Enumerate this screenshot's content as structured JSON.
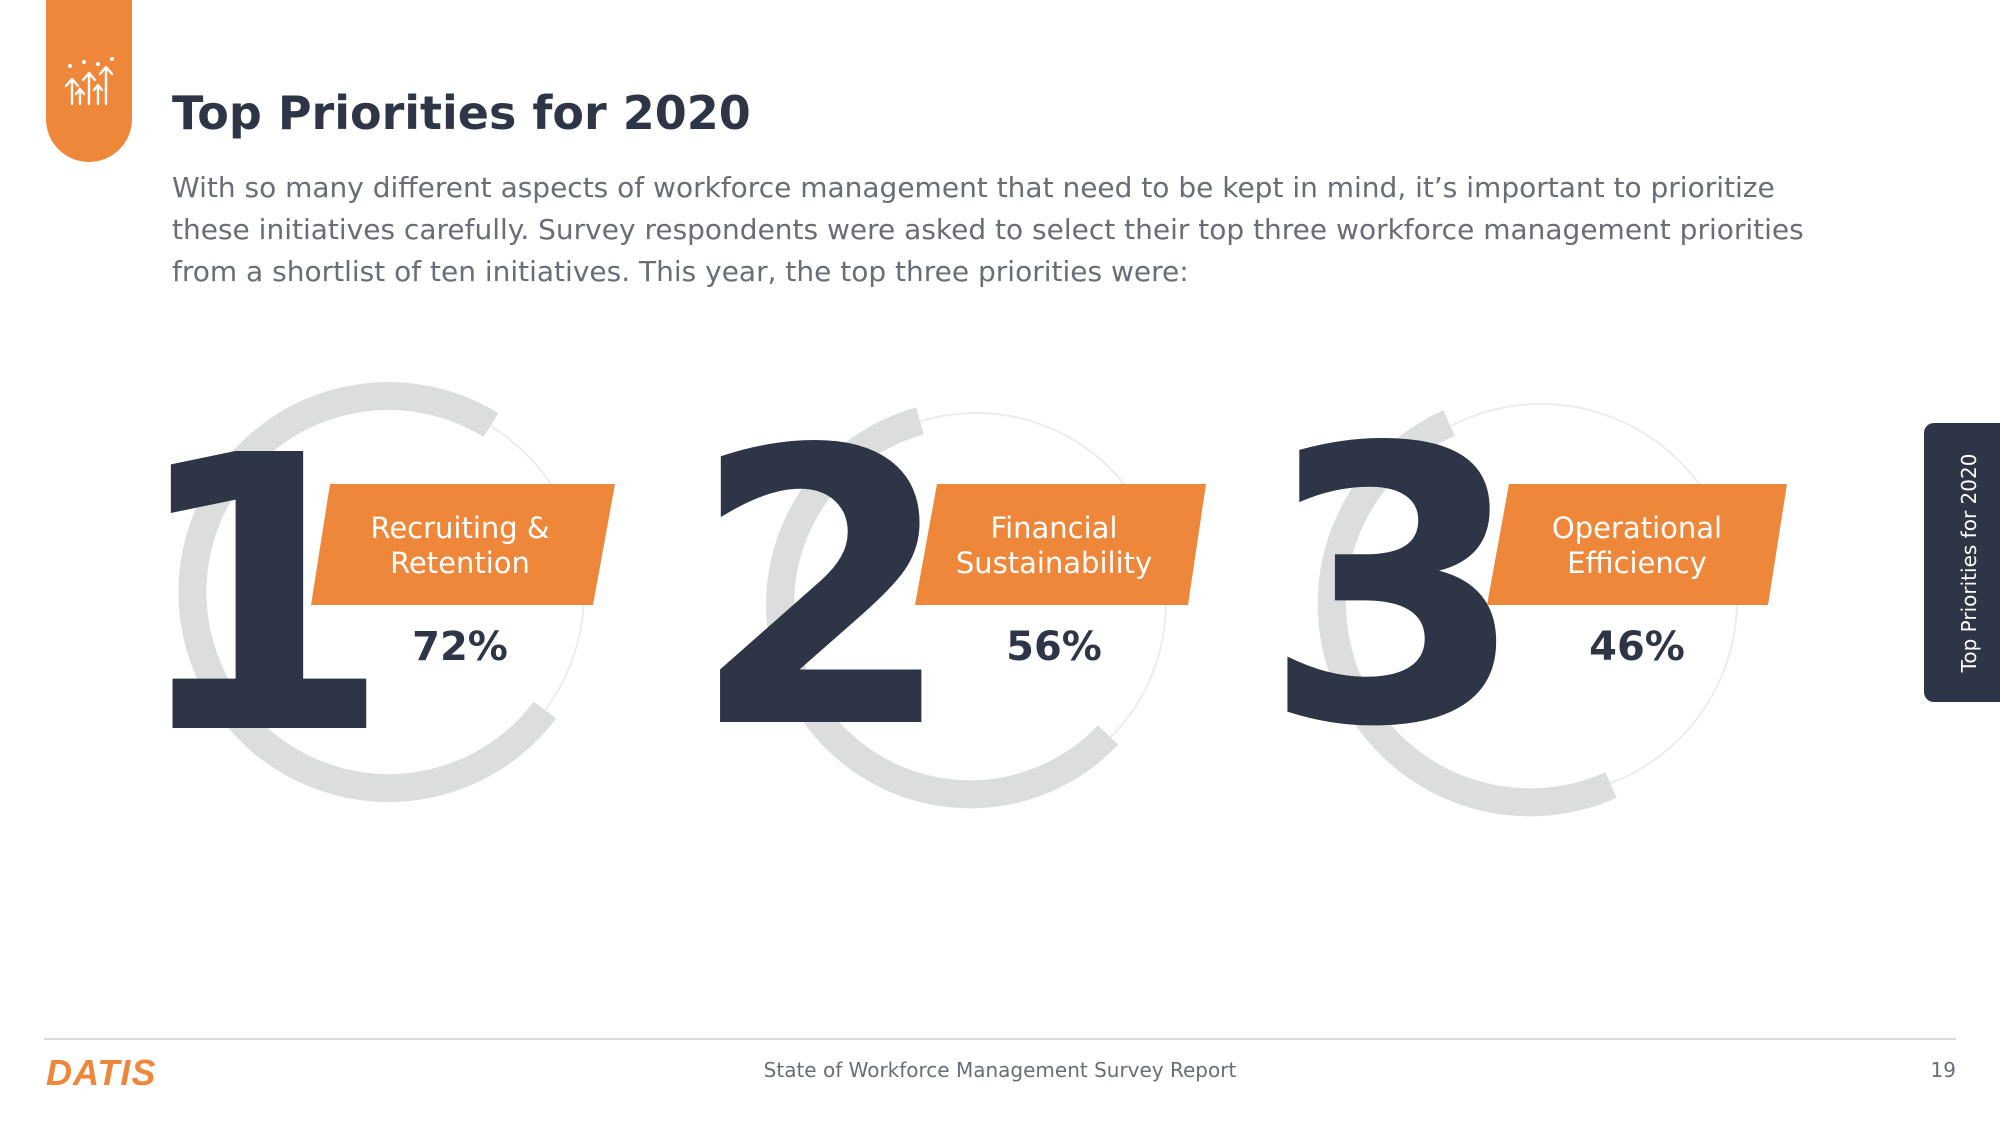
{
  "header": {
    "title": "Top Priorities for 2020",
    "intro": "With so many different aspects of workforce management that need to be kept in mind, it’s important to prioritize these initiatives carefully. Survey respondents were asked to select their top three workforce management priorities from a shortlist of ten initiatives. This year, the top three priorities were:",
    "icon": "growth-arrows-icon"
  },
  "priorities": [
    {
      "rank": "1",
      "label_line1": "Recruiting &",
      "label_line2": "Retention",
      "percent": "72%"
    },
    {
      "rank": "2",
      "label_line1": "Financial",
      "label_line2": "Sustainability",
      "percent": "56%"
    },
    {
      "rank": "3",
      "label_line1": "Operational",
      "label_line2": "Efficiency",
      "percent": "46%"
    }
  ],
  "side_tab": {
    "label": "Top Priorities for 2020"
  },
  "footer": {
    "logo": "DATIS",
    "report_title": "State of Workforce Management Survey Report",
    "page_number": "19"
  },
  "colors": {
    "accent": "#ef873a",
    "navy": "#2e3547",
    "ring": "#dcdddd",
    "text_gray": "#6a6d75"
  }
}
